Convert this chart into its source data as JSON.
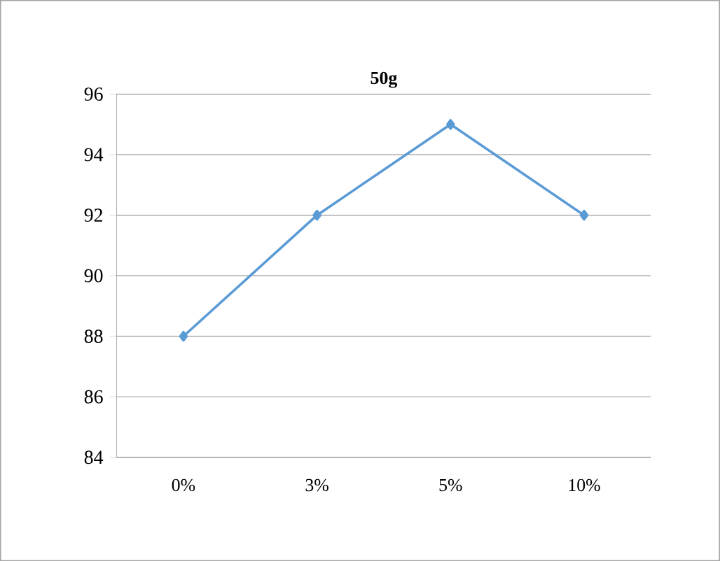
{
  "chart_data": {
    "type": "line",
    "title": "50g",
    "categories": [
      "0%",
      "3%",
      "5%",
      "10%"
    ],
    "series": [
      {
        "color": "#5b9bd5",
        "values": [
          88,
          92,
          95,
          92
        ]
      }
    ],
    "ylim": [
      84,
      96
    ],
    "yticks": [
      84,
      86,
      88,
      90,
      92,
      94,
      96
    ],
    "grid": "y",
    "marker": "diamond",
    "line_style": "solid"
  }
}
